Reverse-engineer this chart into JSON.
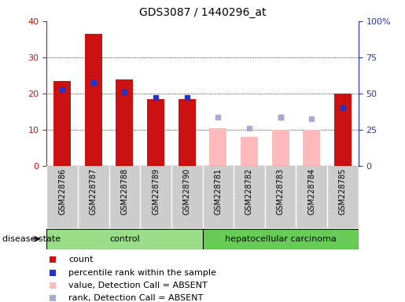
{
  "title": "GDS3087 / 1440296_at",
  "samples": [
    "GSM228786",
    "GSM228787",
    "GSM228788",
    "GSM228789",
    "GSM228790",
    "GSM228781",
    "GSM228782",
    "GSM228783",
    "GSM228784",
    "GSM228785"
  ],
  "count_values": [
    23.5,
    36.5,
    24.0,
    18.5,
    18.5,
    null,
    null,
    null,
    null,
    20.0
  ],
  "percentile_rank_left": [
    21.0,
    23.0,
    20.5,
    19.0,
    19.0,
    null,
    null,
    13.5,
    null,
    16.0
  ],
  "absent_value": [
    null,
    null,
    null,
    null,
    null,
    10.5,
    8.0,
    10.0,
    10.0,
    null
  ],
  "absent_rank_left": [
    null,
    null,
    null,
    null,
    null,
    13.5,
    10.5,
    13.5,
    13.0,
    null
  ],
  "ylim_left": [
    0,
    40
  ],
  "ylim_right": [
    0,
    100
  ],
  "count_color": "#cc1111",
  "percentile_color": "#2233cc",
  "absent_value_color": "#ffbbbb",
  "absent_rank_color": "#aaaacc",
  "control_color": "#99dd88",
  "cancer_color": "#66cc55",
  "xlabel_area_color": "#cccccc",
  "legend_items": [
    {
      "label": "count",
      "color": "#cc1111"
    },
    {
      "label": "percentile rank within the sample",
      "color": "#2233cc"
    },
    {
      "label": "value, Detection Call = ABSENT",
      "color": "#ffbbbb"
    },
    {
      "label": "rank, Detection Call = ABSENT",
      "color": "#aaaacc"
    }
  ],
  "bar_width": 0.55
}
